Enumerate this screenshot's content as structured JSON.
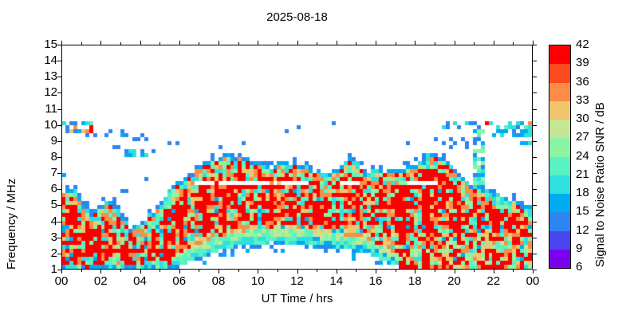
{
  "page": {
    "background": "#ffffff"
  },
  "chart_data": {
    "type": "heatmap",
    "title": "2025-08-18",
    "xlabel": "UT Time / hrs",
    "ylabel": "Frequency / MHz",
    "colorbar_label": "Signal to Noise Ratio SNR / dB",
    "x_range_hours": [
      0,
      24
    ],
    "y_range_mhz": [
      1,
      15
    ],
    "x_tick_labels": [
      "00",
      "02",
      "04",
      "06",
      "08",
      "10",
      "12",
      "14",
      "16",
      "18",
      "20",
      "22",
      "00"
    ],
    "x_minor_tick_every_hours": 1,
    "y_tick_values": [
      1,
      2,
      3,
      4,
      5,
      6,
      7,
      8,
      9,
      10,
      11,
      12,
      13,
      14,
      15
    ],
    "colorbar_ticks": [
      6,
      9,
      12,
      15,
      18,
      21,
      24,
      27,
      30,
      33,
      36,
      39,
      42
    ],
    "snr_bins": [
      {
        "min": 6,
        "max": 9,
        "color": "#7C00F0"
      },
      {
        "min": 9,
        "max": 12,
        "color": "#4845F0"
      },
      {
        "min": 12,
        "max": 15,
        "color": "#2B86F0"
      },
      {
        "min": 15,
        "max": 18,
        "color": "#00ACF0"
      },
      {
        "min": 18,
        "max": 21,
        "color": "#2FE0DE"
      },
      {
        "min": 21,
        "max": 24,
        "color": "#58F2C3"
      },
      {
        "min": 24,
        "max": 27,
        "color": "#8BF5A3"
      },
      {
        "min": 27,
        "max": 30,
        "color": "#C3E795"
      },
      {
        "min": 30,
        "max": 33,
        "color": "#EFC66E"
      },
      {
        "min": 33,
        "max": 36,
        "color": "#FC8C46"
      },
      {
        "min": 36,
        "max": 39,
        "color": "#FC4A1F"
      },
      {
        "min": 39,
        "max": 42,
        "color": "#FA0000"
      }
    ],
    "envelope_max_freq_mhz": [
      [
        0,
        5.8
      ],
      [
        0.3,
        6.0
      ],
      [
        0.7,
        5.9
      ],
      [
        1.2,
        4.9
      ],
      [
        1.6,
        4.6
      ],
      [
        2.0,
        5.0
      ],
      [
        2.6,
        5.3
      ],
      [
        3.0,
        4.5
      ],
      [
        3.5,
        3.6
      ],
      [
        4.0,
        3.7
      ],
      [
        4.5,
        4.4
      ],
      [
        5.0,
        5.0
      ],
      [
        5.5,
        5.9
      ],
      [
        6.0,
        6.5
      ],
      [
        6.5,
        7.0
      ],
      [
        7.0,
        7.4
      ],
      [
        7.5,
        7.8
      ],
      [
        8.0,
        8.0
      ],
      [
        8.7,
        8.1
      ],
      [
        9.5,
        8.0
      ],
      [
        10.2,
        7.5
      ],
      [
        10.8,
        7.4
      ],
      [
        11.3,
        7.8
      ],
      [
        11.8,
        7.6
      ],
      [
        12.3,
        7.5
      ],
      [
        13.0,
        7.1
      ],
      [
        13.6,
        7.0
      ],
      [
        14.2,
        7.4
      ],
      [
        14.7,
        8.0
      ],
      [
        15.2,
        7.5
      ],
      [
        15.6,
        6.9
      ],
      [
        16.0,
        7.1
      ],
      [
        17.0,
        7.2
      ],
      [
        17.6,
        7.4
      ],
      [
        18.2,
        7.7
      ],
      [
        19.0,
        8.2
      ],
      [
        19.5,
        7.8
      ],
      [
        20.0,
        7.2
      ],
      [
        20.5,
        6.7
      ],
      [
        21.0,
        6.3
      ],
      [
        21.5,
        6.1
      ],
      [
        22.0,
        5.9
      ],
      [
        22.5,
        5.6
      ],
      [
        23.0,
        5.3
      ],
      [
        23.5,
        5.1
      ],
      [
        24,
        4.9
      ]
    ],
    "lower_cutoff_freq_mhz": [
      [
        0,
        1.0
      ],
      [
        5.5,
        1.0
      ],
      [
        6.0,
        1.2
      ],
      [
        6.5,
        1.45
      ],
      [
        7.0,
        1.7
      ],
      [
        7.5,
        1.95
      ],
      [
        8.0,
        2.15
      ],
      [
        8.5,
        2.3
      ],
      [
        9.0,
        2.45
      ],
      [
        9.5,
        2.55
      ],
      [
        10.0,
        2.6
      ],
      [
        11.0,
        2.65
      ],
      [
        12.0,
        2.6
      ],
      [
        13.0,
        2.5
      ],
      [
        14.0,
        2.35
      ],
      [
        15.0,
        2.15
      ],
      [
        15.5,
        2.0
      ],
      [
        16.0,
        1.8
      ],
      [
        16.5,
        1.5
      ],
      [
        17.0,
        1.2
      ],
      [
        17.5,
        1.0
      ],
      [
        24,
        1.0
      ]
    ],
    "interference_rows_mhz": [
      5.95,
      5.35,
      4.65,
      4.1,
      3.5,
      2.95,
      2.45,
      1.95,
      1.55
    ],
    "clear_row": {
      "freq": 6.4,
      "t0": 5.5,
      "t1": 19.5
    },
    "blue_row": {
      "freq": 2.1,
      "t0": 11.8,
      "t1": 16.2
    },
    "sporadic_features": [
      {
        "t0": 0.0,
        "t1": 0.45,
        "f0": 9.8,
        "f1": 10.15,
        "p": 0.5,
        "snr": [
          13,
          19
        ]
      },
      {
        "t0": 0.1,
        "t1": 1.0,
        "f0": 9.6,
        "f1": 10.0,
        "p": 0.45,
        "snr": [
          13,
          13,
          16
        ]
      },
      {
        "t0": 0.8,
        "t1": 2.0,
        "f0": 9.3,
        "f1": 9.7,
        "p": 0.45,
        "snr": [
          13,
          13,
          16
        ]
      },
      {
        "t0": 0.6,
        "t1": 1.5,
        "f0": 9.5,
        "f1": 9.85,
        "p": 0.5,
        "snr": [
          40,
          34,
          31
        ]
      },
      {
        "t0": 1.0,
        "t1": 1.7,
        "f0": 10.0,
        "f1": 10.2,
        "p": 0.5,
        "snr": [
          19,
          22
        ]
      },
      {
        "t0": 2.3,
        "t1": 3.2,
        "f0": 9.3,
        "f1": 9.6,
        "p": 0.4,
        "snr": [
          13,
          16
        ]
      },
      {
        "t0": 3.3,
        "t1": 4.2,
        "f0": 9.1,
        "f1": 9.3,
        "p": 0.35,
        "snr": [
          13
        ]
      },
      {
        "t0": 3.3,
        "t1": 4.3,
        "f0": 8.15,
        "f1": 8.45,
        "p": 0.5,
        "snr": [
          13,
          16,
          19
        ]
      },
      {
        "t0": 2.8,
        "t1": 3.3,
        "f0": 8.5,
        "f1": 8.7,
        "p": 0.3,
        "snr": [
          13
        ]
      },
      {
        "t0": 2.7,
        "t1": 3.2,
        "f0": 5.6,
        "f1": 5.9,
        "p": 0.3,
        "snr": [
          13
        ]
      },
      {
        "t0": 0.05,
        "t1": 0.35,
        "f0": 6.8,
        "f1": 7.7,
        "p": 0.3,
        "snr": [
          13,
          16
        ]
      },
      {
        "t0": 5.3,
        "t1": 5.9,
        "f0": 8.7,
        "f1": 9.0,
        "p": 0.15,
        "snr": [
          13
        ]
      },
      {
        "t0": 18.8,
        "t1": 21.3,
        "f0": 9.9,
        "f1": 10.15,
        "p": 0.3,
        "snr": [
          19,
          13
        ]
      },
      {
        "t0": 21.3,
        "t1": 23.3,
        "f0": 9.9,
        "f1": 10.15,
        "p": 0.35,
        "snr": [
          19,
          13,
          22
        ]
      },
      {
        "t0": 22.0,
        "t1": 24.0,
        "f0": 9.35,
        "f1": 9.7,
        "p": 0.45,
        "snr": [
          13,
          16,
          19
        ]
      },
      {
        "t0": 23.4,
        "t1": 24.0,
        "f0": 8.8,
        "f1": 10.1,
        "p": 0.5,
        "snr": [
          19,
          22,
          16
        ]
      },
      {
        "t0": 21.05,
        "t1": 21.45,
        "f0": 6.3,
        "f1": 9.6,
        "p": 0.75,
        "snr": [
          16,
          19,
          22,
          25,
          13
        ]
      },
      {
        "t0": 19.0,
        "t1": 20.8,
        "f0": 8.6,
        "f1": 9.3,
        "p": 0.12,
        "snr": [
          13
        ]
      }
    ],
    "spot_dots": [
      {
        "t": 21.7,
        "f": 10.0,
        "snr": 40
      },
      {
        "t": 23.85,
        "f": 10.05,
        "snr": 34
      },
      {
        "t": 12.1,
        "f": 9.9,
        "snr": 13
      },
      {
        "t": 13.9,
        "f": 10.05,
        "snr": 13
      },
      {
        "t": 17.7,
        "f": 8.95,
        "snr": 13
      },
      {
        "t": 8.2,
        "f": 8.6,
        "snr": 13
      },
      {
        "t": 9.3,
        "f": 8.85,
        "snr": 13
      },
      {
        "t": 11.4,
        "f": 9.6,
        "snr": 13
      },
      {
        "t": 4.25,
        "f": 6.5,
        "snr": 13
      },
      {
        "t": 4.7,
        "f": 8.45,
        "snr": 13
      }
    ]
  }
}
